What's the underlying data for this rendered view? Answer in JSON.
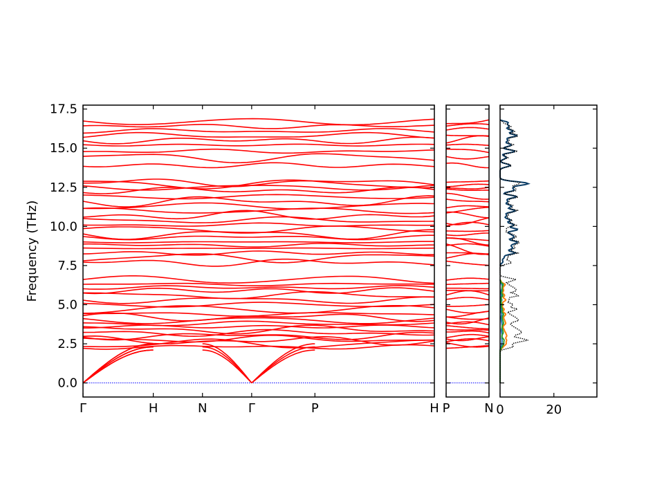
{
  "chart_data": {
    "type": "line",
    "ylabel": "Frequency (THz)",
    "ylim": [
      -0.9,
      17.75
    ],
    "y_ticks": [
      "0.0",
      "2.5",
      "5.0",
      "7.5",
      "10.0",
      "12.5",
      "15.0",
      "17.5"
    ],
    "y_tick_values": [
      0,
      2.5,
      5,
      7.5,
      10,
      12.5,
      15,
      17.5
    ],
    "band_color": "#ff0000",
    "zero_line_color": "#0000ff",
    "panels": [
      {
        "name": "band-path-main",
        "xlim": [
          0,
          5
        ],
        "x_ticks": [
          {
            "value": 0,
            "label": "Γ"
          },
          {
            "value": 1,
            "label": "H"
          },
          {
            "value": 1.7,
            "label": "N"
          },
          {
            "value": 2.4,
            "label": "Γ"
          },
          {
            "value": 3.3,
            "label": "P"
          },
          {
            "value": 5,
            "label": "H"
          }
        ]
      },
      {
        "name": "band-path-pn",
        "xlim": [
          0,
          1
        ],
        "x_ticks": [
          {
            "value": 0,
            "label": "P"
          },
          {
            "value": 1,
            "label": "N"
          }
        ]
      }
    ],
    "band_families": [
      {
        "values": [
          2.3,
          2.5,
          2.7,
          2.8,
          3.0,
          3.2,
          3.4,
          3.6,
          3.8,
          4.0,
          4.2,
          4.4,
          4.7,
          5.0,
          5.3,
          5.6,
          5.9,
          6.1,
          6.3,
          6.6
        ]
      },
      {
        "values": [
          7.7,
          8.0,
          8.3,
          8.6,
          8.8,
          9.0,
          9.3,
          9.5,
          9.8,
          10.1,
          10.4,
          10.7,
          11.0,
          11.3,
          11.6,
          11.9
        ]
      },
      {
        "values": [
          12.3,
          12.5,
          12.7,
          12.8
        ]
      },
      {
        "values": [
          13.9,
          14.4,
          14.8,
          15.2,
          15.5,
          15.8,
          16.1,
          16.4,
          16.7
        ]
      }
    ],
    "dos": {
      "x_ticks": [
        "0",
        "20"
      ],
      "x_tick_values": [
        0,
        20
      ],
      "xlim": [
        0,
        36
      ],
      "series": [
        {
          "color": "#1f77b4",
          "range": [
            0,
            6.6
          ],
          "scale": 3
        },
        {
          "color": "#ff7f0e",
          "range": [
            0,
            6.6
          ],
          "scale": 9
        },
        {
          "color": "#2ca02c",
          "range": [
            0,
            6.6
          ],
          "scale": 5
        },
        {
          "color": "#0b3d66",
          "range": [
            7.5,
            16.8
          ],
          "scale": 28
        },
        {
          "color": "#000000",
          "range": [
            0,
            16.8
          ],
          "scale": 30,
          "dotted": true
        }
      ]
    }
  }
}
